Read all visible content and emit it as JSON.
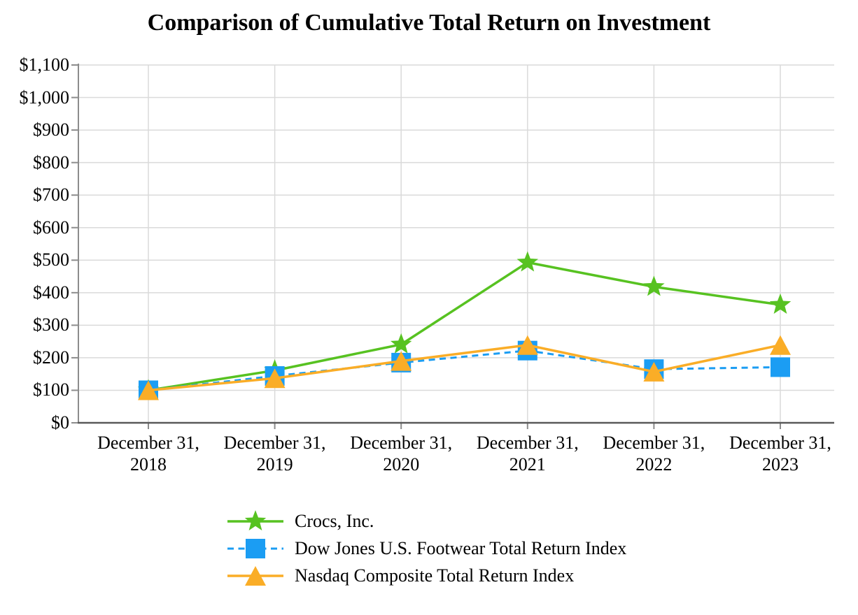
{
  "chart_data": {
    "type": "line",
    "title": "Comparison of Cumulative Total Return on Investment",
    "categories": [
      "December 31, 2018",
      "December 31, 2019",
      "December 31, 2020",
      "December 31, 2021",
      "December 31, 2022",
      "December 31, 2023"
    ],
    "x_tick_labels": [
      {
        "top": "December 31,",
        "bottom": "2018"
      },
      {
        "top": "December 31,",
        "bottom": "2019"
      },
      {
        "top": "December 31,",
        "bottom": "2020"
      },
      {
        "top": "December 31,",
        "bottom": "2021"
      },
      {
        "top": "December 31,",
        "bottom": "2022"
      },
      {
        "top": "December 31,",
        "bottom": "2023"
      }
    ],
    "series": [
      {
        "name": "Crocs, Inc.",
        "marker": "star",
        "line_style": "solid",
        "color": "#57C221",
        "values": [
          100,
          161,
          241,
          493,
          418,
          363
        ]
      },
      {
        "name": "Dow Jones U.S. Footwear Total Return Index",
        "marker": "square",
        "line_style": "dashed",
        "color": "#1B9DF3",
        "values": [
          100,
          144,
          185,
          222,
          165,
          171
        ]
      },
      {
        "name": "Nasdaq Composite Total Return Index",
        "marker": "triangle",
        "line_style": "solid",
        "color": "#FAAD27",
        "values": [
          100,
          137,
          190,
          239,
          157,
          239
        ]
      }
    ],
    "y_axis": {
      "min": 0,
      "max": 1100,
      "step": 100,
      "tick_labels": [
        "$1,100",
        "$1,000",
        "$900",
        "$800",
        "$700",
        "$600",
        "$500",
        "$400",
        "$300",
        "$200",
        "$100",
        "$0"
      ]
    },
    "ylim": [
      0,
      1100
    ],
    "grid": true,
    "legend_position": "bottom-left",
    "gridline_color": "#DADADA",
    "axis_color": "#8C8C8C",
    "x_axis_line_color": "#595959",
    "background": "#FFFFFF"
  }
}
